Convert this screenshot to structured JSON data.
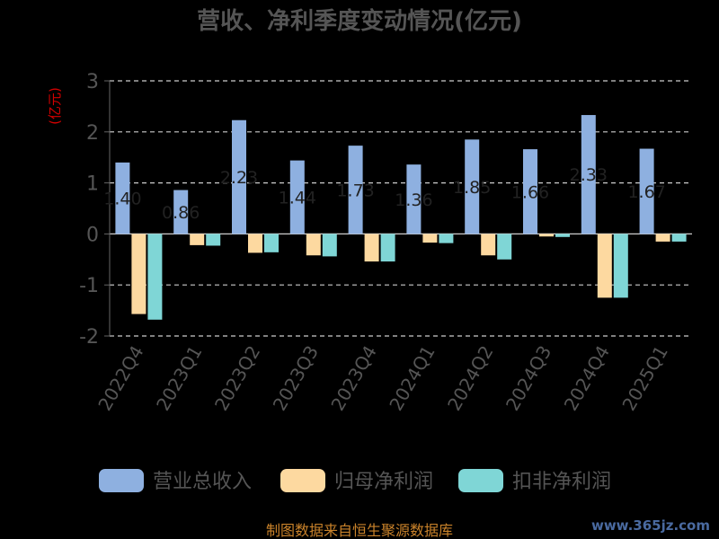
{
  "chart_data": {
    "type": "bar",
    "title": "营收、净利季度变动情况(亿元)",
    "ylabel": "(亿元)",
    "xlabel": "",
    "ylim": [
      -2,
      3
    ],
    "yticks": [
      3,
      2,
      1,
      0,
      -1,
      -2
    ],
    "grid": true,
    "legend_position": "bottom",
    "categories": [
      "2022Q4",
      "2023Q1",
      "2023Q2",
      "2023Q3",
      "2023Q4",
      "2024Q1",
      "2024Q2",
      "2024Q3",
      "2024Q4",
      "2025Q1"
    ],
    "series": [
      {
        "name": "营业总收入",
        "color": "#8eb0e0",
        "values": [
          1.4,
          0.86,
          2.23,
          1.44,
          1.73,
          1.36,
          1.85,
          1.66,
          2.33,
          1.67
        ],
        "labels": [
          "1.40",
          "0.86",
          "2.23",
          "1.44",
          "1.73",
          "1.36",
          "1.85",
          "1.66",
          "2.33",
          "1.67"
        ]
      },
      {
        "name": "归母净利润",
        "color": "#fdd9a0",
        "values": [
          -1.57,
          -0.22,
          -0.37,
          -0.42,
          -0.54,
          -0.17,
          -0.42,
          -0.05,
          -1.25,
          -0.15
        ]
      },
      {
        "name": "扣非净利润",
        "color": "#7fd6d6",
        "values": [
          -1.68,
          -0.23,
          -0.36,
          -0.44,
          -0.54,
          -0.18,
          -0.5,
          -0.06,
          -1.25,
          -0.15
        ]
      }
    ]
  },
  "footer": {
    "source": "制图数据来自恒生聚源数据库",
    "watermark": "www.365jz.com"
  }
}
